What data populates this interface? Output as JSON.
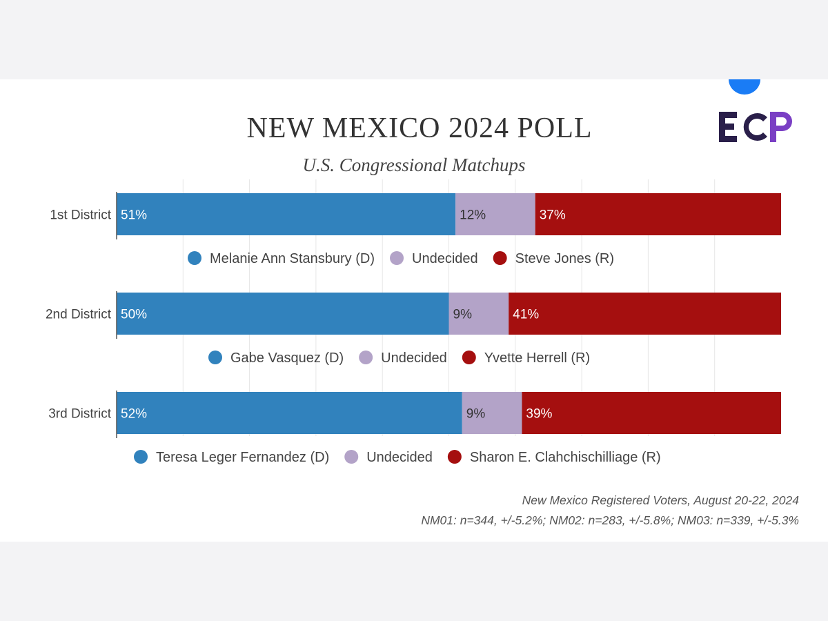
{
  "logo_text": "ECP",
  "chart_data": {
    "type": "bar",
    "orientation": "horizontal",
    "stacked": true,
    "title": "NEW MEXICO 2024 POLL",
    "subtitle": "U.S. Congressional Matchups",
    "categories": [
      "1st District",
      "2nd District",
      "3rd District"
    ],
    "xlim": [
      0,
      100
    ],
    "grid": true,
    "colors": {
      "dem": "#3182bd",
      "undecided": "#b3a3c8",
      "rep": "#a50f0f"
    },
    "groups": [
      {
        "category": "1st District",
        "series": [
          {
            "name": "Melanie Ann Stansbury (D)",
            "value": 51,
            "label": "51%"
          },
          {
            "name": "Undecided",
            "value": 12,
            "label": "12%"
          },
          {
            "name": "Steve Jones (R)",
            "value": 37,
            "label": "37%"
          }
        ]
      },
      {
        "category": "2nd District",
        "series": [
          {
            "name": "Gabe Vasquez (D)",
            "value": 50,
            "label": "50%"
          },
          {
            "name": "Undecided",
            "value": 9,
            "label": "9%"
          },
          {
            "name": "Yvette Herrell (R)",
            "value": 41,
            "label": "41%"
          }
        ]
      },
      {
        "category": "3rd District",
        "series": [
          {
            "name": "Teresa Leger Fernandez (D)",
            "value": 52,
            "label": "52%"
          },
          {
            "name": "Undecided",
            "value": 9,
            "label": "9%"
          },
          {
            "name": "Sharon E. Clahchischilliage (R)",
            "value": 39,
            "label": "39%"
          }
        ]
      }
    ]
  },
  "footnotes": {
    "line1": "New Mexico Registered Voters, August 20-22, 2024",
    "line2": "NM01: n=344, +/-5.2%; NM02: n=283, +/-5.8%; NM03: n=339, +/-5.3%"
  }
}
